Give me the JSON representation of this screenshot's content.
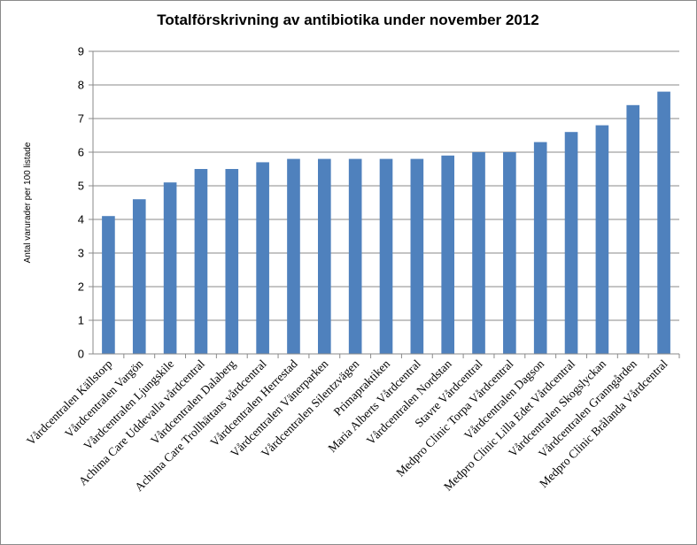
{
  "chart_data": {
    "type": "bar",
    "title": "Totalförskrivning av antibiotika under november 2012",
    "xlabel": "",
    "ylabel": "Antal varurader per 100 listade",
    "ylim": [
      0,
      9
    ],
    "yticks": [
      0,
      1,
      2,
      3,
      4,
      5,
      6,
      7,
      8,
      9
    ],
    "grid": true,
    "legend": "none",
    "bar_color": "#4F81BD",
    "categories": [
      "Vårdcentralen Källstorp",
      "Vårdcentralen Vargön",
      "Vårdcentralen Ljungskile",
      "Achima Care Uddevalla vårdcentral",
      "Vårdcentralen Dalaberg",
      "Achima Care Trollhättans vårdcentral",
      "Vårdcentralen Herrestad",
      "Vårdcentralen Vänerparken",
      "Vårdcentralen Silentzvägen",
      "Primapraktiken",
      "Maria Alberts Vårdcentral",
      "Vårdcentralen Nordstan",
      "Stavre Vårdcentral",
      "Medpro Clinic Torpa Vårdcentral",
      "Vårdcentralen Dagson",
      "Medpro Clinic Lilla Edet Vårdcentral",
      "Vårdcentralen Skogslyckan",
      "Vårdcentralen Granngården",
      "Medpro Clinic Brålanda Vårdcentral"
    ],
    "values": [
      4.1,
      4.6,
      5.1,
      5.5,
      5.5,
      5.7,
      5.8,
      5.8,
      5.8,
      5.8,
      5.8,
      5.9,
      6.0,
      6.0,
      6.3,
      6.6,
      6.8,
      7.4,
      7.8
    ]
  }
}
